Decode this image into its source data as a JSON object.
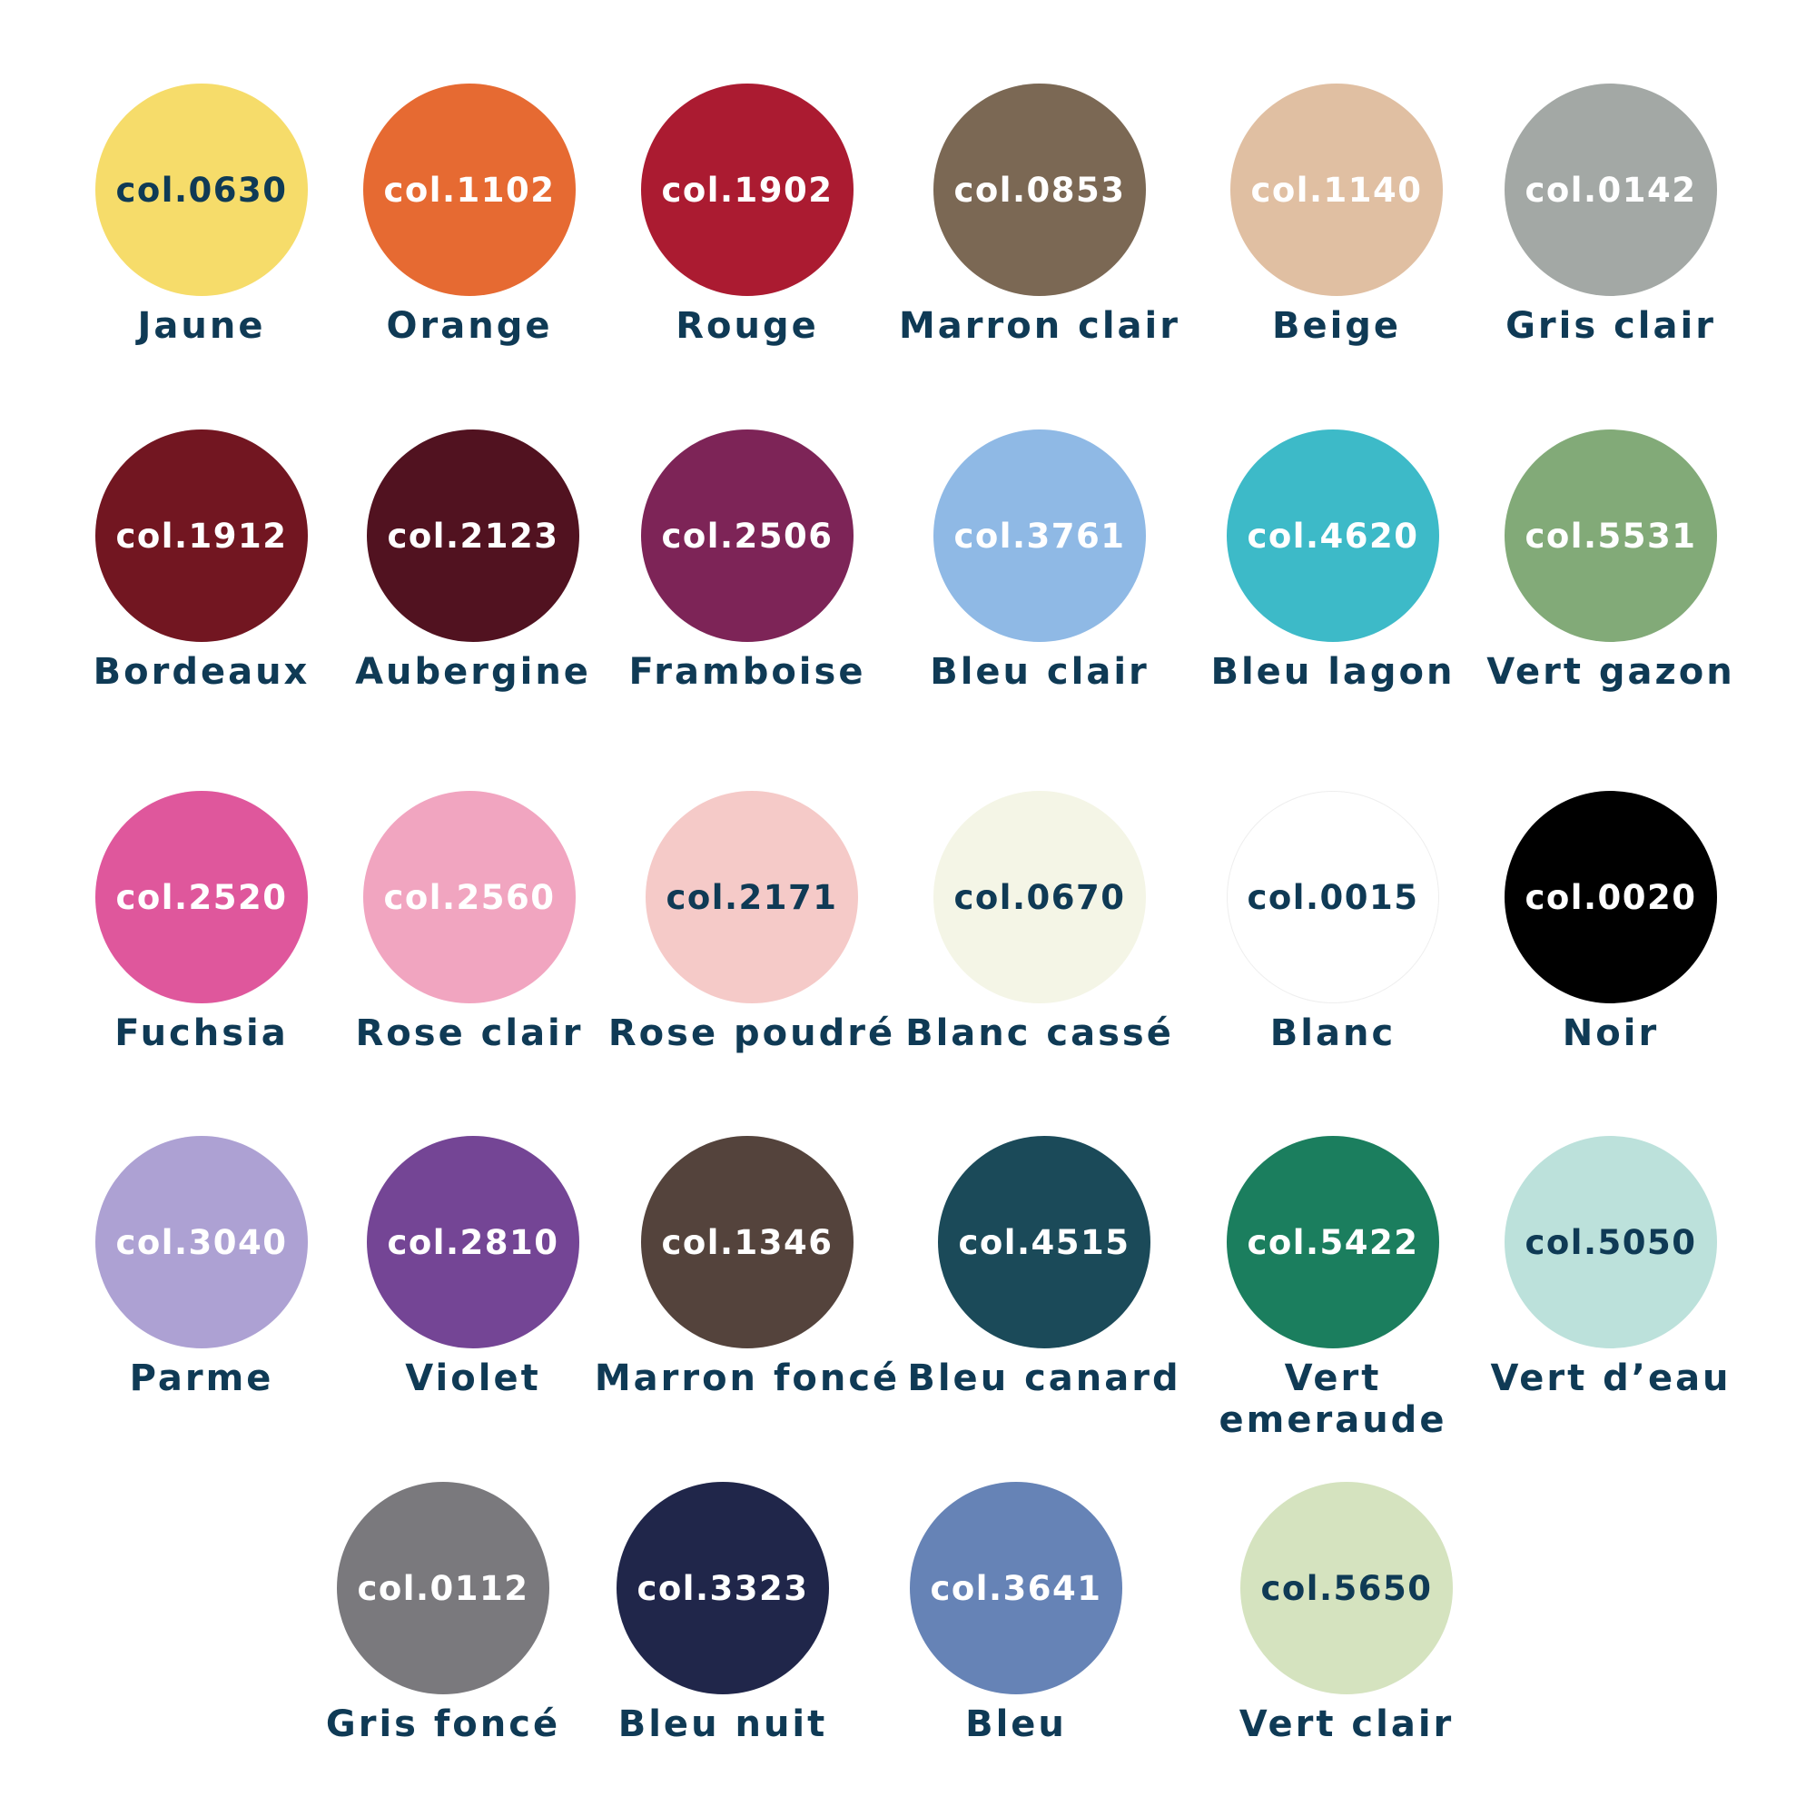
{
  "text_dark": "#0f3a55",
  "colors": [
    {
      "code": "col.0630",
      "name": "Jaune",
      "hex": "#f6dc6a",
      "dark": true
    },
    {
      "code": "col.1102",
      "name": "Orange",
      "hex": "#e66a32",
      "dark": false
    },
    {
      "code": "col.1902",
      "name": "Rouge",
      "hex": "#ab1b31",
      "dark": false
    },
    {
      "code": "col.0853",
      "name": "Marron clair",
      "hex": "#7b6854",
      "dark": false
    },
    {
      "code": "col.1140",
      "name": "Beige",
      "hex": "#e0bfa2",
      "dark": false
    },
    {
      "code": "col.0142",
      "name": "Gris clair",
      "hex": "#a3a8a5",
      "dark": false
    },
    {
      "code": "col.1912",
      "name": "Bordeaux",
      "hex": "#721621",
      "dark": false
    },
    {
      "code": "col.2123",
      "name": "Aubergine",
      "hex": "#511220",
      "dark": false
    },
    {
      "code": "col.2506",
      "name": "Framboise",
      "hex": "#7d2457",
      "dark": false
    },
    {
      "code": "col.3761",
      "name": "Bleu clair",
      "hex": "#8fb9e5",
      "dark": false
    },
    {
      "code": "col.4620",
      "name": "Bleu lagon",
      "hex": "#3dbac8",
      "dark": false
    },
    {
      "code": "col.5531",
      "name": "Vert gazon",
      "hex": "#82aa78",
      "dark": false
    },
    {
      "code": "col.2520",
      "name": "Fuchsia",
      "hex": "#df579c",
      "dark": false
    },
    {
      "code": "col.2560",
      "name": "Rose clair",
      "hex": "#f1a5c0",
      "dark": false
    },
    {
      "code": "col.2171",
      "name": "Rose poudré",
      "hex": "#f5cac8",
      "dark": true
    },
    {
      "code": "col.0670",
      "name": "Blanc cassé",
      "hex": "#f4f5e6",
      "dark": true
    },
    {
      "code": "col.0015",
      "name": "Blanc",
      "hex": "#ffffff",
      "dark": true
    },
    {
      "code": "col.0020",
      "name": "Noir",
      "hex": "#000000",
      "dark": false
    },
    {
      "code": "col.3040",
      "name": "Parme",
      "hex": "#ada1d3",
      "dark": false
    },
    {
      "code": "col.2810",
      "name": "Violet",
      "hex": "#744595",
      "dark": false
    },
    {
      "code": "col.1346",
      "name": "Marron foncé",
      "hex": "#54433c",
      "dark": false
    },
    {
      "code": "col.4515",
      "name": "Bleu canard",
      "hex": "#1b4a59",
      "dark": false
    },
    {
      "code": "col.5422",
      "name": "Vert emeraude",
      "hex": "#1b7e5e",
      "dark": false
    },
    {
      "code": "col.5050",
      "name": "Vert d’eau",
      "hex": "#bce1db",
      "dark": true
    },
    {
      "code": "col.0112",
      "name": "Gris foncé",
      "hex": "#7a797d",
      "dark": false
    },
    {
      "code": "col.3323",
      "name": "Bleu nuit",
      "hex": "#20264a",
      "dark": false
    },
    {
      "code": "col.3641",
      "name": "Bleu",
      "hex": "#6683b6",
      "dark": false
    },
    {
      "code": "col.5650",
      "name": "Vert clair",
      "hex": "#d5e3bf",
      "dark": true
    }
  ]
}
